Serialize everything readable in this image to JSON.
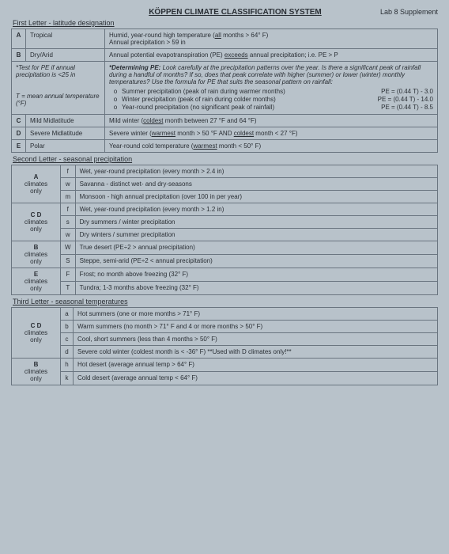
{
  "header": {
    "title": "KÖPPEN CLIMATE CLASSIFICATION SYSTEM",
    "lab": "Lab 8 Supplement"
  },
  "first_letter": {
    "section": "First Letter - latitude designation",
    "rows": {
      "A": {
        "name": "Tropical",
        "desc": "Humid, year-round high temperature (all months > 64° F)\nAnnual precipitation > 59 in"
      },
      "B": {
        "name": "Dry/Arid",
        "desc": "Annual potential evapotranspiration (PE) exceeds annual precipitation; i.e. PE > P"
      },
      "C": {
        "name": "Mild Midlatitude",
        "desc": "Mild winter (coldest month between 27 °F and 64 °F)"
      },
      "D": {
        "name": "Severe Midlatitude",
        "desc": "Severe winter (warmest month > 50 °F AND coldest month < 27 °F)"
      },
      "E": {
        "name": "Polar",
        "desc": "Year-round cold temperature (warmest month < 50° F)"
      }
    },
    "pe_box": {
      "test_label": "*Test for PE if annual precipitation is <25 in",
      "t_label": "T = mean annual temperature (°F)",
      "determine_title": "*Determining PE:",
      "determine_text": "Look carefully at the precipitation patterns over the year. Is there a significant peak of rainfall during a handful of months? If so, does that peak correlate with higher (summer) or lower (winter) monthly temperatures? Use the formula for PE that suits the seasonal pattern on rainfall:",
      "items": [
        {
          "label": "Summer precipitation (peak of rain during warmer months)",
          "formula": "PE = (0.44 T) - 3.0"
        },
        {
          "label": "Winter precipitation (peak of rain during colder months)",
          "formula": "PE = (0.44 T) - 14.0"
        },
        {
          "label": "Year-round precipitation (no significant peak of rainfall)",
          "formula": "PE = (0.44 T) - 8.5"
        }
      ]
    }
  },
  "second_letter": {
    "section": "Second Letter - seasonal precipitation",
    "groups": [
      {
        "group": "A\nclimates\nonly",
        "rows": [
          {
            "code": "f",
            "desc": "Wet, year-round precipitation (every month > 2.4 in)"
          },
          {
            "code": "w",
            "desc": "Savanna - distinct wet- and dry-seasons"
          },
          {
            "code": "m",
            "desc": "Monsoon - high annual precipitation (over 100 in per year)"
          }
        ]
      },
      {
        "group": "C D\nclimates\nonly",
        "rows": [
          {
            "code": "f",
            "desc": "Wet, year-round precipitation (every month > 1.2 in)"
          },
          {
            "code": "s",
            "desc": "Dry summers / winter precipitation"
          },
          {
            "code": "w",
            "desc": "Dry winters / summer precipitation"
          }
        ]
      },
      {
        "group": "B\nclimates\nonly",
        "rows": [
          {
            "code": "W",
            "desc": "True desert (PE÷2 > annual precipitation)"
          },
          {
            "code": "S",
            "desc": "Steppe, semi-arid (PE÷2 < annual precipitation)"
          }
        ]
      },
      {
        "group": "E\nclimates\nonly",
        "rows": [
          {
            "code": "F",
            "desc": "Frost; no month above freezing (32° F)"
          },
          {
            "code": "T",
            "desc": "Tundra; 1-3 months above freezing (32° F)"
          }
        ]
      }
    ]
  },
  "third_letter": {
    "section": "Third Letter - seasonal temperatures",
    "groups": [
      {
        "group": "C D\nclimates\nonly",
        "rows": [
          {
            "code": "a",
            "desc": "Hot summers (one or more months > 71° F)"
          },
          {
            "code": "b",
            "desc": "Warm summers (no month > 71° F and 4 or more months > 50° F)"
          },
          {
            "code": "c",
            "desc": "Cool, short summers (less than 4 months > 50° F)"
          },
          {
            "code": "d",
            "desc": "Severe cold winter (coldest month is < -36° F)   **Used with D climates only!**"
          }
        ]
      },
      {
        "group": "B\nclimates\nonly",
        "rows": [
          {
            "code": "h",
            "desc": "Hot desert (average annual temp > 64° F)"
          },
          {
            "code": "k",
            "desc": "Cold desert (average annual temp < 64° F)"
          }
        ]
      }
    ]
  }
}
